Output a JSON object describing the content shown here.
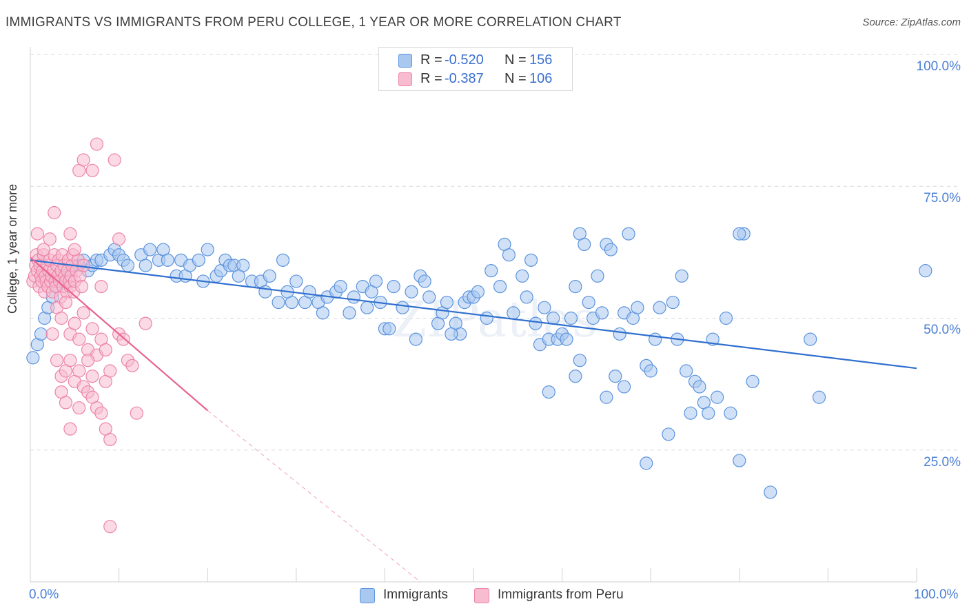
{
  "title": "IMMIGRANTS VS IMMIGRANTS FROM PERU COLLEGE, 1 YEAR OR MORE CORRELATION CHART",
  "source": "Source: ZipAtlas.com",
  "legend": {
    "rows": [
      {
        "r_label": "R =",
        "r_value": "-0.520",
        "n_label": "N =",
        "n_value": "156"
      },
      {
        "r_label": "R =",
        "r_value": "-0.387",
        "n_label": "N =",
        "n_value": "106"
      }
    ]
  },
  "bottom_legend": [
    "Immigrants",
    "Immigrants from Peru"
  ],
  "colors": {
    "immigrants_fill": "#a9c8f0",
    "immigrants_stroke": "#5b93dd",
    "immigrants_line": "#2f6fcf",
    "peru_fill": "#f7bcd0",
    "peru_stroke": "#ec84a8",
    "peru_line": "#e8638f",
    "grid": "#d8d8d8",
    "tick_label": "#4a7fd6"
  },
  "axis": {
    "ylabel": "College, 1 year or more",
    "ytick_labels": [
      "100.0%",
      "75.0%",
      "50.0%",
      "25.0%"
    ],
    "xtick_labels": [
      "0.0%",
      "100.0%"
    ]
  },
  "chart_data": {
    "type": "scatter",
    "xlabel": "",
    "ylabel": "College, 1 year or more",
    "xlim": [
      0,
      100
    ],
    "ylim": [
      0,
      100
    ],
    "grid": true,
    "grid_lines_y": [
      100,
      75,
      50,
      25
    ],
    "watermark": "ZIPatlas",
    "series": [
      {
        "name": "Immigrants",
        "r": -0.52,
        "n": 156,
        "trend": {
          "x0": 0,
          "y0": 61.0,
          "x1": 100,
          "y1": 40.5
        },
        "points": [
          [
            0.3,
            42.5
          ],
          [
            0.8,
            45
          ],
          [
            1.2,
            47
          ],
          [
            1.6,
            50
          ],
          [
            2.0,
            52
          ],
          [
            2.5,
            54
          ],
          [
            3.0,
            56
          ],
          [
            3.5,
            57
          ],
          [
            1.5,
            58
          ],
          [
            4.0,
            58
          ],
          [
            4.5,
            59
          ],
          [
            5.0,
            60
          ],
          [
            5.5,
            60
          ],
          [
            6.0,
            61
          ],
          [
            6.5,
            59
          ],
          [
            7.0,
            60
          ],
          [
            7.5,
            61
          ],
          [
            8.0,
            61
          ],
          [
            9.0,
            62
          ],
          [
            9.5,
            63
          ],
          [
            10.0,
            62
          ],
          [
            10.5,
            61
          ],
          [
            11.0,
            60
          ],
          [
            12.5,
            62
          ],
          [
            13.0,
            60
          ],
          [
            13.5,
            63
          ],
          [
            14.5,
            61
          ],
          [
            15.0,
            63
          ],
          [
            15.5,
            61
          ],
          [
            16.5,
            58
          ],
          [
            17.0,
            61
          ],
          [
            17.5,
            58
          ],
          [
            18.0,
            60
          ],
          [
            19.0,
            61
          ],
          [
            19.5,
            57
          ],
          [
            20.0,
            63
          ],
          [
            21.0,
            58
          ],
          [
            21.5,
            59
          ],
          [
            22.0,
            61
          ],
          [
            22.5,
            60
          ],
          [
            23.0,
            60
          ],
          [
            24.0,
            60
          ],
          [
            23.5,
            58
          ],
          [
            25.0,
            57
          ],
          [
            26.0,
            57
          ],
          [
            26.5,
            55
          ],
          [
            27.0,
            58
          ],
          [
            28.0,
            53
          ],
          [
            29.5,
            53
          ],
          [
            28.5,
            61
          ],
          [
            29.0,
            55
          ],
          [
            30.0,
            57
          ],
          [
            31.0,
            53
          ],
          [
            31.5,
            55
          ],
          [
            32.5,
            53
          ],
          [
            33.0,
            51
          ],
          [
            33.5,
            54
          ],
          [
            34.5,
            55
          ],
          [
            35.0,
            56
          ],
          [
            36.0,
            51
          ],
          [
            36.5,
            54
          ],
          [
            37.5,
            56
          ],
          [
            38.0,
            52
          ],
          [
            38.5,
            55
          ],
          [
            39.0,
            57
          ],
          [
            39.5,
            53
          ],
          [
            40.0,
            48
          ],
          [
            40.5,
            48
          ],
          [
            41.0,
            56
          ],
          [
            42.0,
            52
          ],
          [
            43.0,
            55
          ],
          [
            44.0,
            58
          ],
          [
            43.5,
            46
          ],
          [
            45.0,
            54
          ],
          [
            44.5,
            57
          ],
          [
            46.0,
            49
          ],
          [
            46.5,
            51
          ],
          [
            47.0,
            53
          ],
          [
            48.0,
            49
          ],
          [
            48.5,
            47
          ],
          [
            47.5,
            47
          ],
          [
            49.0,
            53
          ],
          [
            49.5,
            54
          ],
          [
            50.0,
            54
          ],
          [
            50.5,
            55
          ],
          [
            51.5,
            50
          ],
          [
            52.0,
            59
          ],
          [
            53.0,
            56
          ],
          [
            53.5,
            64
          ],
          [
            54.0,
            62
          ],
          [
            54.5,
            51
          ],
          [
            55.5,
            58
          ],
          [
            56.0,
            54
          ],
          [
            56.5,
            61
          ],
          [
            57.0,
            49
          ],
          [
            57.5,
            45
          ],
          [
            58.0,
            52
          ],
          [
            58.5,
            46
          ],
          [
            58.5,
            36
          ],
          [
            59.0,
            50
          ],
          [
            59.5,
            46
          ],
          [
            60.0,
            47
          ],
          [
            60.5,
            46
          ],
          [
            61.0,
            50
          ],
          [
            61.5,
            56
          ],
          [
            62.0,
            66
          ],
          [
            62.5,
            64
          ],
          [
            62.0,
            42
          ],
          [
            61.5,
            39
          ],
          [
            63.0,
            53
          ],
          [
            63.5,
            50
          ],
          [
            64.0,
            58
          ],
          [
            64.5,
            51
          ],
          [
            65.0,
            64
          ],
          [
            65.0,
            35
          ],
          [
            66.0,
            39
          ],
          [
            66.5,
            47
          ],
          [
            67.0,
            51
          ],
          [
            67.5,
            66
          ],
          [
            68.0,
            50
          ],
          [
            68.5,
            52
          ],
          [
            69.5,
            22.5
          ],
          [
            69.5,
            41
          ],
          [
            70.0,
            40
          ],
          [
            70.5,
            46
          ],
          [
            71.0,
            52
          ],
          [
            72.5,
            53
          ],
          [
            72.0,
            28
          ],
          [
            73.0,
            46
          ],
          [
            73.5,
            58
          ],
          [
            74.0,
            40
          ],
          [
            74.5,
            32
          ],
          [
            75.0,
            38
          ],
          [
            75.5,
            37
          ],
          [
            76.0,
            34
          ],
          [
            76.5,
            32
          ],
          [
            77.0,
            46
          ],
          [
            77.5,
            35
          ],
          [
            78.5,
            50
          ],
          [
            79.0,
            32
          ],
          [
            80.0,
            23
          ],
          [
            80.5,
            66
          ],
          [
            81.5,
            38
          ],
          [
            83.5,
            17
          ],
          [
            88.0,
            46
          ],
          [
            89.0,
            35
          ],
          [
            101.0,
            59
          ],
          [
            65.5,
            63
          ],
          [
            80.0,
            66
          ],
          [
            67.0,
            37
          ]
        ]
      },
      {
        "name": "Immigrants from Peru",
        "r": -0.387,
        "n": 106,
        "trend": {
          "x0": 0,
          "y0": 61.5,
          "x1": 20,
          "y1": 32.5
        },
        "trend_dashed": {
          "x0": 20,
          "y0": 32.5,
          "x1": 44,
          "y1": 0
        },
        "points": [
          [
            0.3,
            57
          ],
          [
            0.5,
            58
          ],
          [
            0.6,
            60
          ],
          [
            0.7,
            62
          ],
          [
            0.8,
            59
          ],
          [
            0.9,
            61
          ],
          [
            1.0,
            56
          ],
          [
            1.1,
            60
          ],
          [
            1.2,
            58
          ],
          [
            1.3,
            57
          ],
          [
            1.4,
            59
          ],
          [
            1.5,
            62
          ],
          [
            1.6,
            55
          ],
          [
            1.7,
            58
          ],
          [
            1.8,
            57
          ],
          [
            1.9,
            60
          ],
          [
            2.0,
            56
          ],
          [
            2.1,
            59
          ],
          [
            2.2,
            61
          ],
          [
            2.3,
            57
          ],
          [
            2.4,
            58
          ],
          [
            2.5,
            55
          ],
          [
            2.6,
            59
          ],
          [
            2.7,
            62
          ],
          [
            2.8,
            57
          ],
          [
            2.9,
            56
          ],
          [
            3.0,
            60
          ],
          [
            3.1,
            58
          ],
          [
            3.2,
            61
          ],
          [
            3.3,
            57
          ],
          [
            3.4,
            54
          ],
          [
            3.5,
            59
          ],
          [
            3.6,
            62
          ],
          [
            3.7,
            56
          ],
          [
            3.8,
            60
          ],
          [
            3.9,
            58
          ],
          [
            4.0,
            57
          ],
          [
            4.1,
            55
          ],
          [
            4.2,
            59
          ],
          [
            4.3,
            61
          ],
          [
            4.4,
            57
          ],
          [
            4.5,
            56
          ],
          [
            4.6,
            58
          ],
          [
            4.7,
            60
          ],
          [
            4.8,
            62
          ],
          [
            4.9,
            55
          ],
          [
            5.0,
            57
          ],
          [
            5.2,
            59
          ],
          [
            5.4,
            61
          ],
          [
            5.6,
            58
          ],
          [
            5.8,
            56
          ],
          [
            6.0,
            60
          ],
          [
            0.8,
            66
          ],
          [
            1.5,
            63
          ],
          [
            2.2,
            65
          ],
          [
            2.7,
            70
          ],
          [
            4.5,
            66
          ],
          [
            5.0,
            63
          ],
          [
            3.0,
            52
          ],
          [
            3.5,
            50
          ],
          [
            4.0,
            53
          ],
          [
            4.5,
            47
          ],
          [
            5.0,
            49
          ],
          [
            5.5,
            46
          ],
          [
            6.0,
            51
          ],
          [
            6.5,
            44
          ],
          [
            7.0,
            48
          ],
          [
            7.5,
            43
          ],
          [
            8.0,
            46
          ],
          [
            8.5,
            44
          ],
          [
            2.5,
            47
          ],
          [
            3.0,
            42
          ],
          [
            3.5,
            39
          ],
          [
            4.0,
            40
          ],
          [
            4.5,
            42
          ],
          [
            5.0,
            38
          ],
          [
            5.5,
            40
          ],
          [
            6.0,
            37
          ],
          [
            6.5,
            36
          ],
          [
            7.0,
            35
          ],
          [
            7.5,
            33
          ],
          [
            8.0,
            32
          ],
          [
            8.5,
            29
          ],
          [
            9.0,
            27
          ],
          [
            3.5,
            36
          ],
          [
            4.0,
            34
          ],
          [
            4.5,
            29
          ],
          [
            5.5,
            33
          ],
          [
            6.5,
            42
          ],
          [
            7.0,
            39
          ],
          [
            8.5,
            38
          ],
          [
            9.0,
            40
          ],
          [
            10.0,
            47
          ],
          [
            10.5,
            46
          ],
          [
            11.0,
            42
          ],
          [
            11.5,
            41
          ],
          [
            12.0,
            32
          ],
          [
            13.0,
            49
          ],
          [
            5.5,
            78
          ],
          [
            6.0,
            80
          ],
          [
            7.5,
            83
          ],
          [
            7.0,
            78
          ],
          [
            9.5,
            80
          ],
          [
            10.0,
            65
          ],
          [
            9.0,
            10.5
          ],
          [
            8.0,
            56
          ]
        ]
      }
    ]
  }
}
